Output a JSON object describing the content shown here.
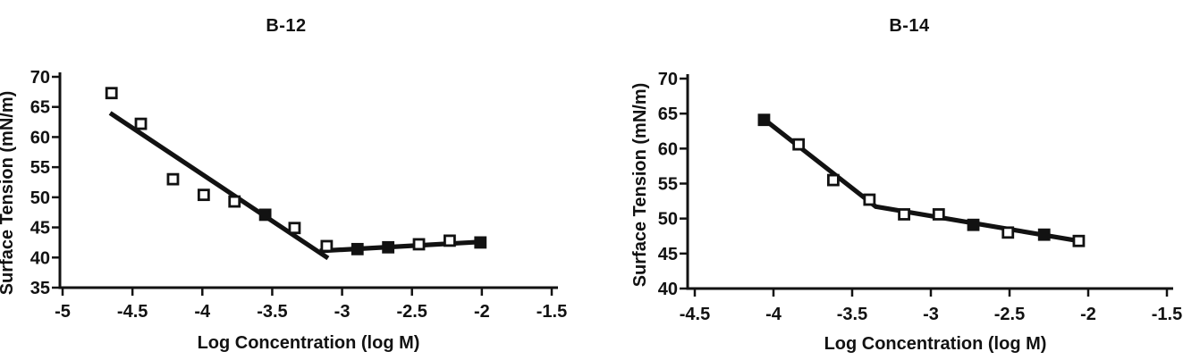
{
  "colors": {
    "ink": "#121212",
    "background": "#ffffff"
  },
  "chart_data": [
    {
      "type": "scatter",
      "title": "B-12",
      "xlabel": "Log Concentration (log M)",
      "ylabel": "Surface Tension (mN/m)",
      "xlim": [
        -5,
        -1.5
      ],
      "ylim": [
        35,
        70
      ],
      "xticks": [
        -5,
        -4.5,
        -4,
        -3.5,
        -3,
        -2.5,
        -2,
        -1.5
      ],
      "xtick_labels": [
        "-5",
        "-4.5",
        "-4",
        "-3.5",
        "-3",
        "-2.5",
        "-2",
        "-1.5"
      ],
      "yticks": [
        35,
        40,
        45,
        50,
        55,
        60,
        65,
        70
      ],
      "ytick_labels": [
        "35",
        "40",
        "45",
        "50",
        "55",
        "60",
        "65",
        "70"
      ],
      "grid": false,
      "legend": null,
      "marker": "square",
      "points": [
        {
          "x": -4.65,
          "y": 67.3,
          "filled": false
        },
        {
          "x": -4.44,
          "y": 62.2,
          "filled": false
        },
        {
          "x": -4.21,
          "y": 53.0,
          "filled": false
        },
        {
          "x": -3.99,
          "y": 50.4,
          "filled": false
        },
        {
          "x": -3.77,
          "y": 49.3,
          "filled": false
        },
        {
          "x": -3.55,
          "y": 47.1,
          "filled": true
        },
        {
          "x": -3.34,
          "y": 44.9,
          "filled": false
        },
        {
          "x": -3.11,
          "y": 41.9,
          "filled": false
        },
        {
          "x": -2.89,
          "y": 41.4,
          "filled": true
        },
        {
          "x": -2.67,
          "y": 41.7,
          "filled": true
        },
        {
          "x": -2.45,
          "y": 42.2,
          "filled": false
        },
        {
          "x": -2.23,
          "y": 42.8,
          "filled": false
        },
        {
          "x": -2.01,
          "y": 42.5,
          "filled": true
        }
      ],
      "trend_lines": [
        [
          {
            "x": -4.66,
            "y": 64.0
          },
          {
            "x": -3.1,
            "y": 39.9
          }
        ],
        [
          {
            "x": -3.16,
            "y": 41.1
          },
          {
            "x": -2.01,
            "y": 42.6
          }
        ]
      ]
    },
    {
      "type": "scatter",
      "title": "B-14",
      "xlabel": "Log Concentration (log M)",
      "ylabel": "Surface Tension (mN/m)",
      "xlim": [
        -4.5,
        -1.5
      ],
      "ylim": [
        40,
        70
      ],
      "xticks": [
        -4.5,
        -4,
        -3.5,
        -3,
        -2.5,
        -2,
        -1.5
      ],
      "xtick_labels": [
        "-4.5",
        "-4",
        "-3.5",
        "-3",
        "-2.5",
        "-2",
        "-1.5"
      ],
      "yticks": [
        40,
        45,
        50,
        55,
        60,
        65,
        70
      ],
      "ytick_labels": [
        "40",
        "45",
        "50",
        "55",
        "60",
        "65",
        "70"
      ],
      "grid": false,
      "legend": null,
      "marker": "square",
      "points": [
        {
          "x": -4.06,
          "y": 64.1,
          "filled": true
        },
        {
          "x": -3.84,
          "y": 60.6,
          "filled": false
        },
        {
          "x": -3.62,
          "y": 55.5,
          "filled": false
        },
        {
          "x": -3.39,
          "y": 52.7,
          "filled": false
        },
        {
          "x": -3.17,
          "y": 50.6,
          "filled": false
        },
        {
          "x": -2.95,
          "y": 50.6,
          "filled": false
        },
        {
          "x": -2.73,
          "y": 49.1,
          "filled": true
        },
        {
          "x": -2.51,
          "y": 48.0,
          "filled": false
        },
        {
          "x": -2.28,
          "y": 47.7,
          "filled": true
        },
        {
          "x": -2.06,
          "y": 46.8,
          "filled": false
        }
      ],
      "trend_lines": [
        [
          {
            "x": -4.06,
            "y": 64.2
          },
          {
            "x": -3.35,
            "y": 51.7
          },
          {
            "x": -2.06,
            "y": 46.8
          }
        ]
      ]
    }
  ]
}
